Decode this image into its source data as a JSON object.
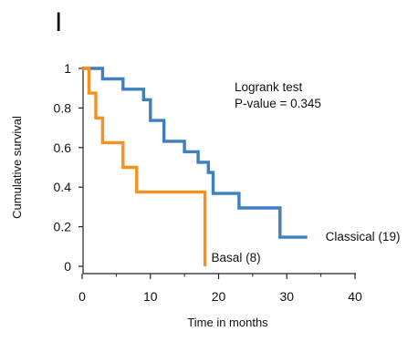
{
  "panel_label": "I",
  "chart_data": {
    "type": "line",
    "subtype": "kaplan-meier-step",
    "xlabel": "Time in months",
    "ylabel": "Cumulative survival",
    "xlim": [
      0,
      40
    ],
    "ylim": [
      0,
      1
    ],
    "x_ticks": [
      0,
      10,
      20,
      30,
      40
    ],
    "y_ticks": [
      0,
      0.2,
      0.4,
      0.6,
      0.8,
      1
    ],
    "x_tick_labels": [
      "0",
      "10",
      "20",
      "30",
      "40"
    ],
    "y_tick_labels": [
      "0",
      "0.2",
      "0.4",
      "0.6",
      "0.8",
      "1"
    ],
    "grid": false,
    "legend": "none",
    "annotations": {
      "test_name": "Logrank test",
      "p_value": "P-value = 0.345"
    },
    "series": [
      {
        "name": "Classical (19)",
        "color": "#3d7fc0",
        "points": [
          [
            0,
            1.0
          ],
          [
            3,
            1.0
          ],
          [
            3,
            0.947
          ],
          [
            6,
            0.947
          ],
          [
            6,
            0.895
          ],
          [
            9,
            0.895
          ],
          [
            9,
            0.842
          ],
          [
            10,
            0.842
          ],
          [
            10,
            0.737
          ],
          [
            12,
            0.737
          ],
          [
            12,
            0.632
          ],
          [
            15,
            0.632
          ],
          [
            15,
            0.579
          ],
          [
            17,
            0.579
          ],
          [
            17,
            0.526
          ],
          [
            18.5,
            0.526
          ],
          [
            18.5,
            0.474
          ],
          [
            19.2,
            0.474
          ],
          [
            19.2,
            0.368
          ],
          [
            23,
            0.368
          ],
          [
            23,
            0.295
          ],
          [
            29,
            0.295
          ],
          [
            29,
            0.147
          ],
          [
            33,
            0.147
          ]
        ]
      },
      {
        "name": "Basal (8)",
        "color": "#f7911e",
        "points": [
          [
            0,
            1.0
          ],
          [
            1,
            1.0
          ],
          [
            1,
            0.875
          ],
          [
            2,
            0.875
          ],
          [
            2,
            0.75
          ],
          [
            3,
            0.75
          ],
          [
            3,
            0.625
          ],
          [
            6,
            0.625
          ],
          [
            6,
            0.5
          ],
          [
            8,
            0.5
          ],
          [
            8,
            0.375
          ],
          [
            18,
            0.375
          ],
          [
            18,
            0.0
          ]
        ]
      }
    ]
  }
}
